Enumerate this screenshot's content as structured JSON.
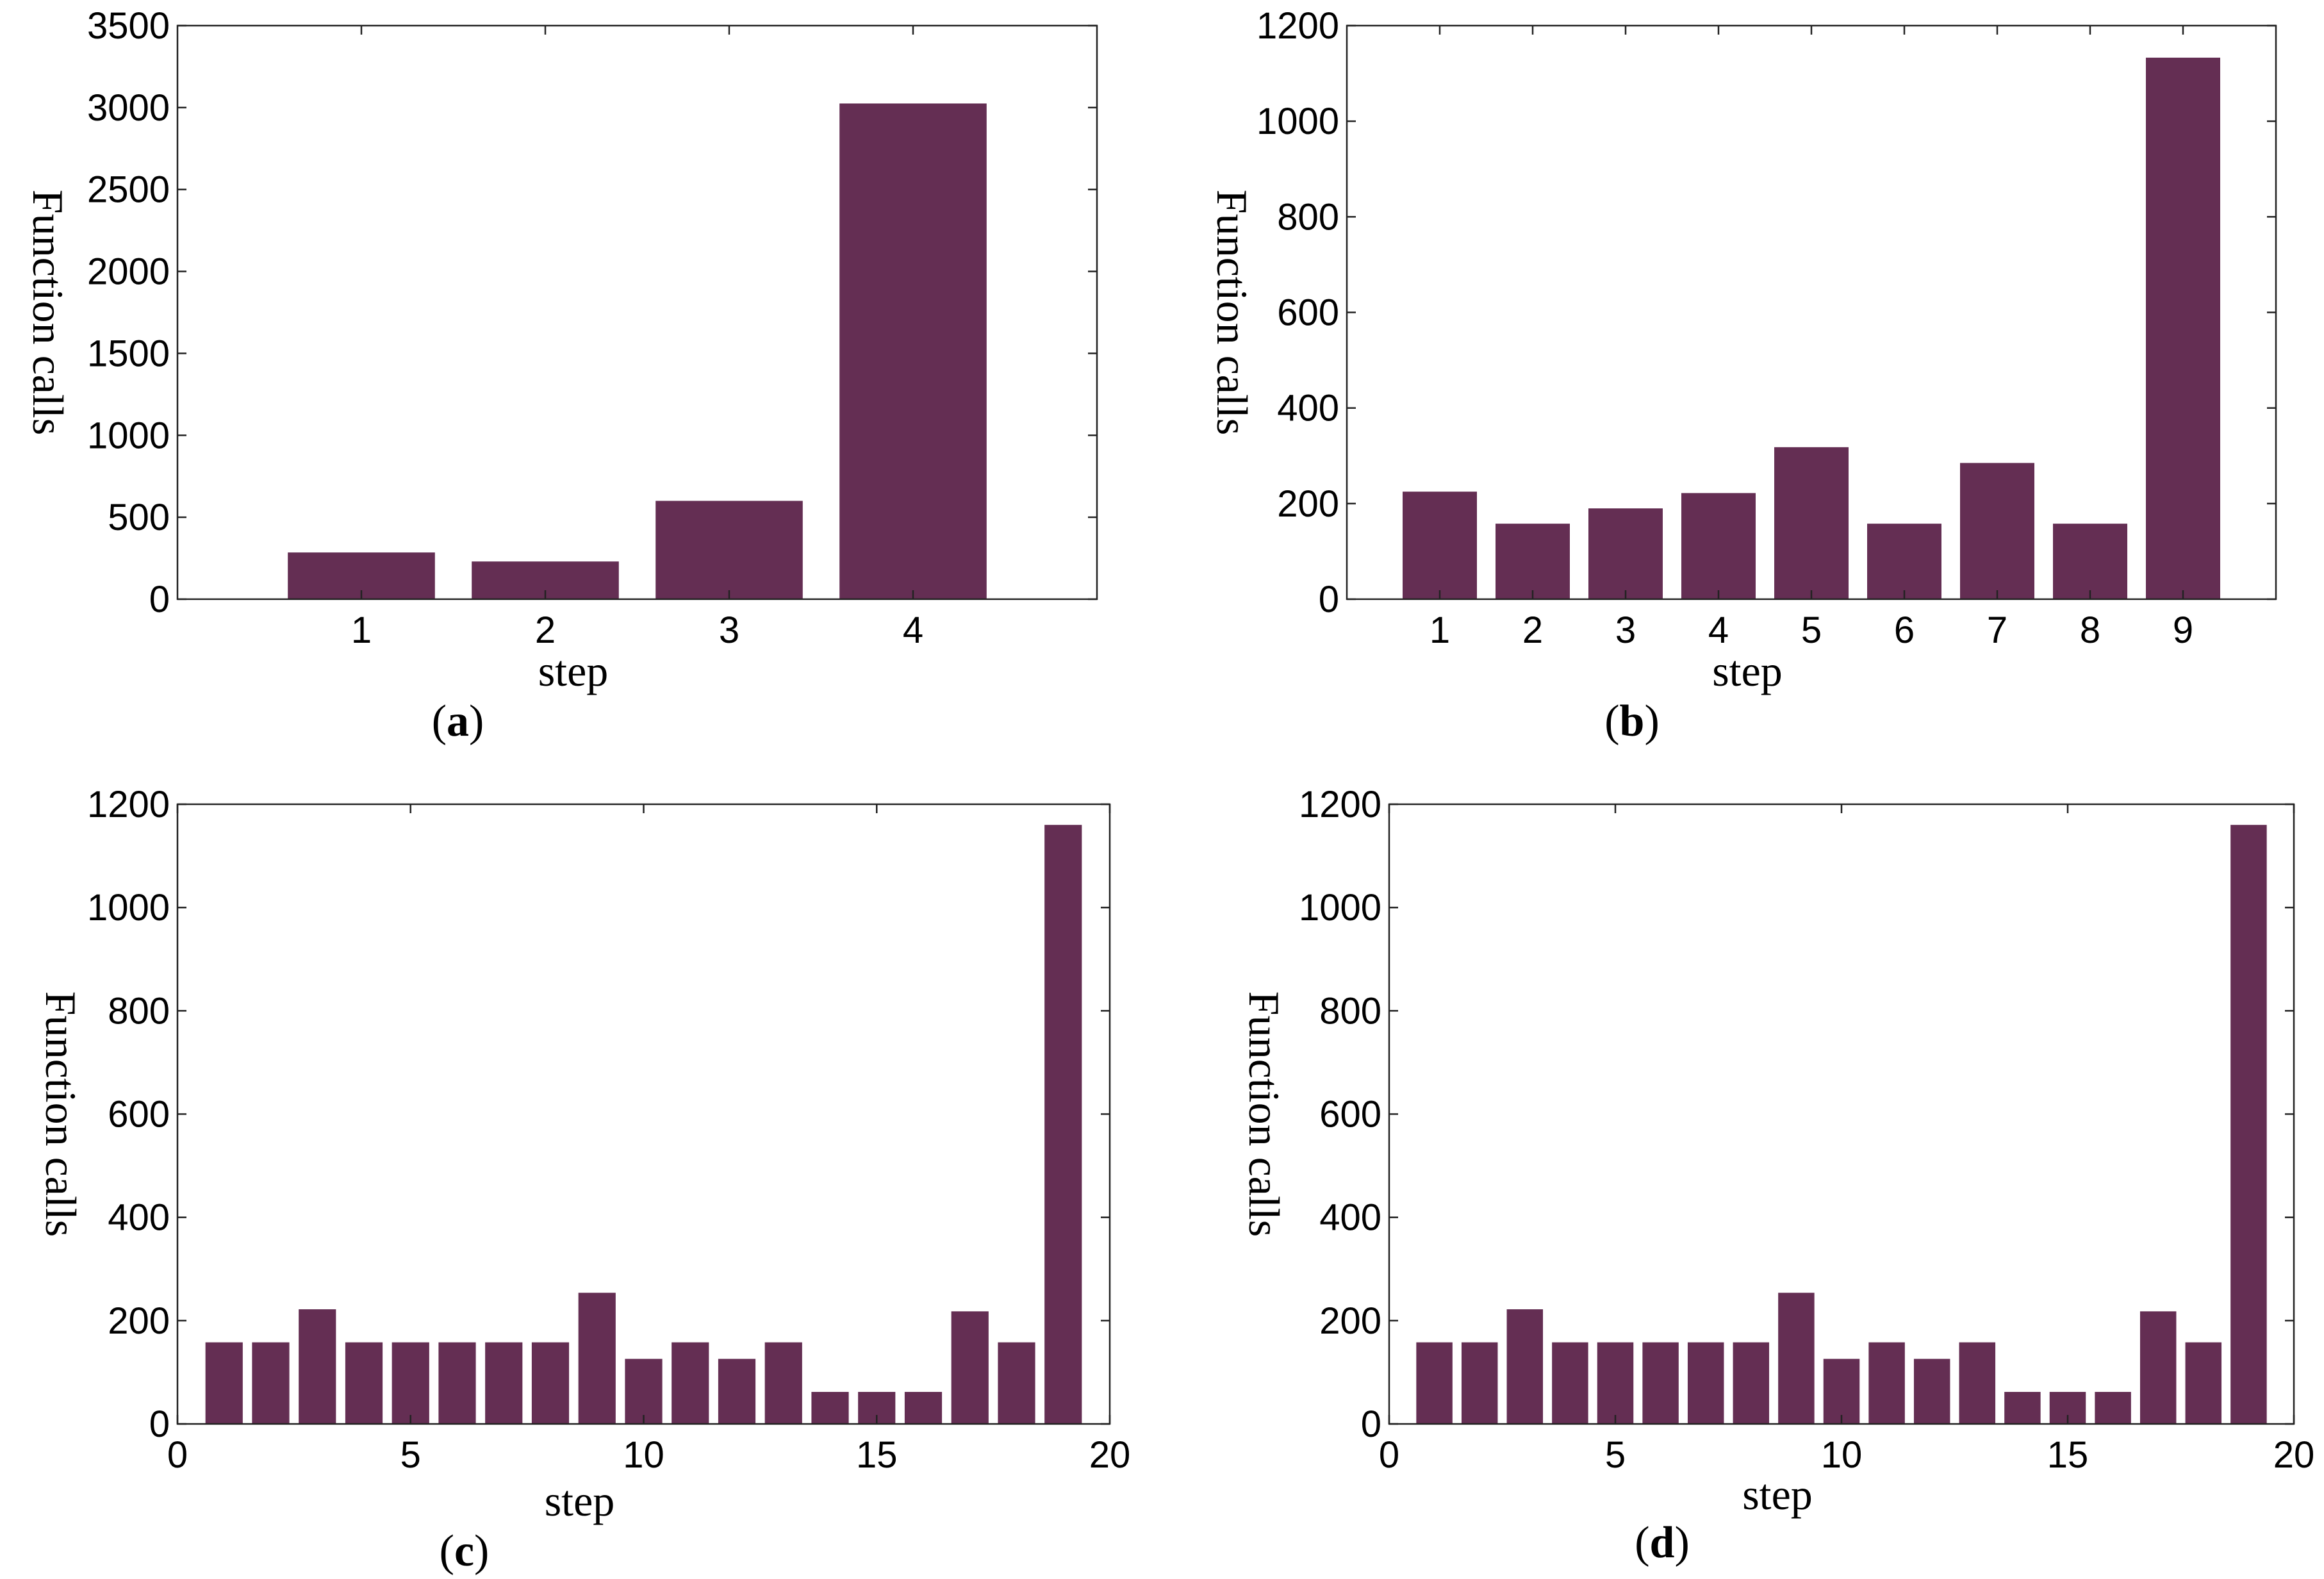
{
  "figure": {
    "bar_color": "#642E53"
  },
  "chart_data": [
    {
      "type": "bar",
      "panel": "a",
      "caption_letter": "a",
      "xlabel": "step",
      "ylabel": "Function calls",
      "categories": [
        "1",
        "2",
        "3",
        "4"
      ],
      "values": [
        285,
        230,
        600,
        3025
      ],
      "xlim": [
        0,
        5
      ],
      "ylim": [
        0,
        3500
      ],
      "yticks": [
        0,
        500,
        1000,
        1500,
        2000,
        2500,
        3000,
        3500
      ],
      "xticks": [
        1,
        2,
        3,
        4
      ],
      "bar_width": 0.8
    },
    {
      "type": "bar",
      "panel": "b",
      "caption_letter": "b",
      "xlabel": "step",
      "ylabel": "Function calls",
      "categories": [
        "1",
        "2",
        "3",
        "4",
        "5",
        "6",
        "7",
        "8",
        "9"
      ],
      "values": [
        225,
        158,
        190,
        222,
        318,
        158,
        285,
        158,
        1133
      ],
      "xlim": [
        0,
        10
      ],
      "ylim": [
        0,
        1200
      ],
      "yticks": [
        0,
        200,
        400,
        600,
        800,
        1000,
        1200
      ],
      "xticks": [
        1,
        2,
        3,
        4,
        5,
        6,
        7,
        8,
        9
      ],
      "bar_width": 0.8
    },
    {
      "type": "bar",
      "panel": "c",
      "caption_letter": "c",
      "xlabel": "step",
      "ylabel": "Function calls",
      "x": [
        1,
        2,
        3,
        4,
        5,
        6,
        7,
        8,
        9,
        10,
        11,
        12,
        13,
        14,
        15,
        16,
        17,
        18,
        19
      ],
      "values": [
        158,
        158,
        222,
        158,
        158,
        158,
        158,
        158,
        254,
        126,
        158,
        126,
        158,
        62,
        62,
        62,
        218,
        158,
        1160
      ],
      "xlim": [
        0,
        20
      ],
      "ylim": [
        0,
        1200
      ],
      "yticks": [
        0,
        200,
        400,
        600,
        800,
        1000,
        1200
      ],
      "xticks": [
        0,
        5,
        10,
        15,
        20
      ],
      "bar_width": 0.8
    },
    {
      "type": "bar",
      "panel": "d",
      "caption_letter": "d",
      "xlabel": "step",
      "ylabel": "Function calls",
      "x": [
        1,
        2,
        3,
        4,
        5,
        6,
        7,
        8,
        9,
        10,
        11,
        12,
        13,
        14,
        15,
        16,
        17,
        18,
        19
      ],
      "values": [
        158,
        158,
        222,
        158,
        158,
        158,
        158,
        158,
        254,
        126,
        158,
        126,
        158,
        62,
        62,
        62,
        218,
        158,
        1160
      ],
      "xlim": [
        0,
        20
      ],
      "ylim": [
        0,
        1200
      ],
      "yticks": [
        0,
        200,
        400,
        600,
        800,
        1000,
        1200
      ],
      "xticks": [
        0,
        5,
        10,
        15,
        20
      ],
      "bar_width": 0.8
    }
  ]
}
